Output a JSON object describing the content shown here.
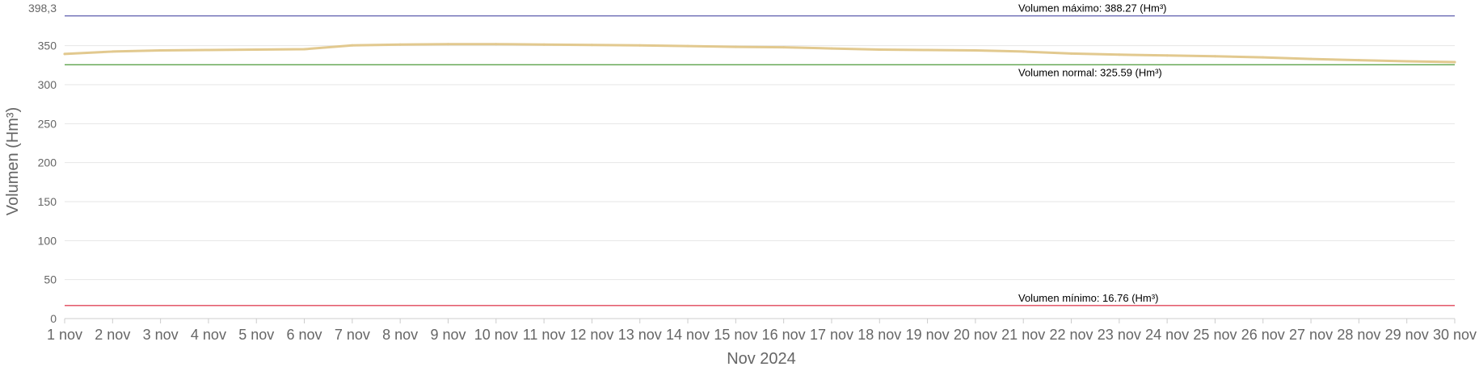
{
  "chart_data": {
    "type": "line",
    "title": "",
    "xlabel": "Nov 2024",
    "ylabel": "Volumen (Hm³)",
    "ylim": [
      0,
      398.3
    ],
    "ymax_label": "398,3",
    "yticks": [
      0,
      50,
      100,
      150,
      200,
      250,
      300,
      350
    ],
    "grid": true,
    "categories": [
      "1 nov",
      "2 nov",
      "3 nov",
      "4 nov",
      "5 nov",
      "6 nov",
      "7 nov",
      "8 nov",
      "9 nov",
      "10 nov",
      "11 nov",
      "12 nov",
      "13 nov",
      "14 nov",
      "15 nov",
      "16 nov",
      "17 nov",
      "18 nov",
      "19 nov",
      "20 nov",
      "21 nov",
      "22 nov",
      "23 nov",
      "24 nov",
      "25 nov",
      "26 nov",
      "27 nov",
      "28 nov",
      "29 nov",
      "30 nov"
    ],
    "series": [
      {
        "color": "#e2c98f",
        "values": [
          339.5,
          342.5,
          344.0,
          344.5,
          345.0,
          345.5,
          350.5,
          351.5,
          352.0,
          352.0,
          351.5,
          351.0,
          350.5,
          349.5,
          348.5,
          348.0,
          346.5,
          345.0,
          344.5,
          344.0,
          342.5,
          340.0,
          338.5,
          337.5,
          336.5,
          335.0,
          333.0,
          331.5,
          330.0,
          329.0
        ]
      }
    ],
    "reference_lines": [
      {
        "label": "Volumen máximo: 388.27 (Hm³)",
        "value": 388.27,
        "color": "#6b6bb5"
      },
      {
        "label": "Volumen normal: 325.59 (Hm³)",
        "value": 325.59,
        "color": "#4c9a38"
      },
      {
        "label": "Volumen mínimo: 16.76 (Hm³)",
        "value": 16.76,
        "color": "#e0445a"
      }
    ]
  }
}
